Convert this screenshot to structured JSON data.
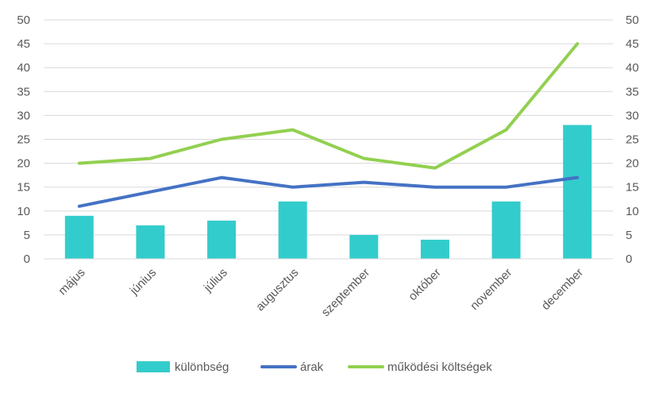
{
  "chart_data": {
    "type": "bar",
    "categories": [
      "május",
      "június",
      "július",
      "augusztus",
      "szeptember",
      "október",
      "november",
      "december"
    ],
    "series": [
      {
        "name": "különbség",
        "type": "bar",
        "color": "#33CCCC",
        "values": [
          9,
          7,
          8,
          12,
          5,
          4,
          12,
          28
        ]
      },
      {
        "name": "árak",
        "type": "line",
        "color": "#4472C4",
        "values": [
          11,
          14,
          17,
          15,
          16,
          15,
          15,
          17
        ]
      },
      {
        "name": "működési költségek",
        "type": "line",
        "color": "#92D050",
        "values": [
          20,
          21,
          25,
          27,
          21,
          19,
          27,
          45
        ]
      }
    ],
    "ylim": [
      0,
      50
    ],
    "y_ticks": [
      0,
      5,
      10,
      15,
      20,
      25,
      30,
      35,
      40,
      45,
      50
    ],
    "secondary_ylim": [
      0,
      50
    ],
    "grid": true,
    "legend_position": "bottom"
  }
}
